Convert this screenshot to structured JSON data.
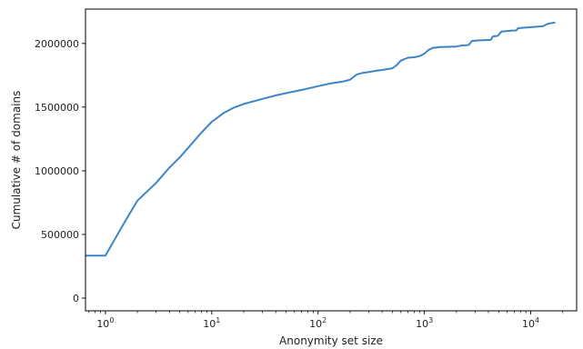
{
  "chart_data": {
    "type": "line",
    "title": "",
    "xlabel": "Anonymity set size",
    "ylabel": "Cumulative # of domains",
    "x_scale": "log",
    "xlim": [
      0.65,
      27000
    ],
    "ylim": [
      -100000,
      2270000
    ],
    "grid": false,
    "legend": "none",
    "x_ticks": [
      {
        "value": 1,
        "base": "10",
        "exp": "0"
      },
      {
        "value": 10,
        "base": "10",
        "exp": "1"
      },
      {
        "value": 100,
        "base": "10",
        "exp": "2"
      },
      {
        "value": 1000,
        "base": "10",
        "exp": "3"
      },
      {
        "value": 10000,
        "base": "10",
        "exp": "4"
      }
    ],
    "y_ticks": [
      {
        "value": 0,
        "label": "0"
      },
      {
        "value": 500000,
        "label": "500000"
      },
      {
        "value": 1000000,
        "label": "1000000"
      },
      {
        "value": 1500000,
        "label": "1500000"
      },
      {
        "value": 2000000,
        "label": "2000000"
      }
    ],
    "series": [
      {
        "color": "#3d85c6",
        "points": [
          [
            0.65,
            333000
          ],
          [
            1.0,
            333000
          ],
          [
            1.5,
            590000
          ],
          [
            2.0,
            765000
          ],
          [
            3.0,
            905000
          ],
          [
            4.0,
            1025000
          ],
          [
            5.0,
            1105000
          ],
          [
            6.0,
            1180000
          ],
          [
            8.0,
            1300000
          ],
          [
            10.0,
            1385000
          ],
          [
            13.0,
            1455000
          ],
          [
            16.0,
            1495000
          ],
          [
            20.0,
            1525000
          ],
          [
            30.0,
            1565000
          ],
          [
            40.0,
            1592000
          ],
          [
            50.0,
            1610000
          ],
          [
            70.0,
            1635000
          ],
          [
            100.0,
            1665000
          ],
          [
            130.0,
            1685000
          ],
          [
            170.0,
            1700000
          ],
          [
            200.0,
            1715000
          ],
          [
            230.0,
            1755000
          ],
          [
            260.0,
            1768000
          ],
          [
            300.0,
            1775000
          ],
          [
            350.0,
            1785000
          ],
          [
            400.0,
            1792000
          ],
          [
            500.0,
            1805000
          ],
          [
            550.0,
            1830000
          ],
          [
            600.0,
            1865000
          ],
          [
            700.0,
            1888000
          ],
          [
            800.0,
            1892000
          ],
          [
            900.0,
            1900000
          ],
          [
            1000.0,
            1920000
          ],
          [
            1100.0,
            1950000
          ],
          [
            1200.0,
            1965000
          ],
          [
            1400.0,
            1972000
          ],
          [
            2000.0,
            1976000
          ],
          [
            2200.0,
            1983000
          ],
          [
            2600.0,
            1988000
          ],
          [
            2800.0,
            2020000
          ],
          [
            3500.0,
            2025000
          ],
          [
            4200.0,
            2028000
          ],
          [
            4400.0,
            2055000
          ],
          [
            4900.0,
            2060000
          ],
          [
            5300.0,
            2093000
          ],
          [
            6500.0,
            2100000
          ],
          [
            7300.0,
            2102000
          ],
          [
            7600.0,
            2120000
          ],
          [
            10000.0,
            2128000
          ],
          [
            13000.0,
            2135000
          ],
          [
            14500.0,
            2155000
          ],
          [
            17000.0,
            2165000
          ]
        ]
      }
    ]
  }
}
